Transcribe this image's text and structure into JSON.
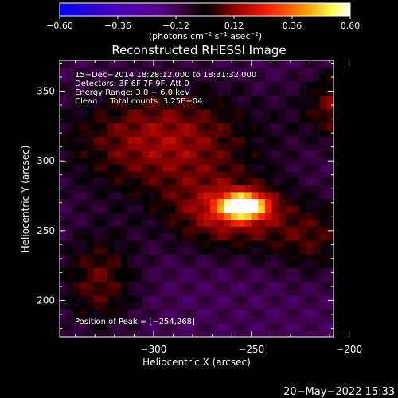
{
  "chart_data": {
    "type": "heatmap",
    "title": "Reconstructed RHESSI Image",
    "xlabel": "Heliocentric X (arcsec)",
    "ylabel": "Heliocentric Y (arcsec)",
    "xlim": [
      -348,
      -208
    ],
    "ylim": [
      174,
      372
    ],
    "xticks": [
      -300,
      -250,
      -200
    ],
    "xtick_labels": [
      "−300",
      "−250",
      "−200"
    ],
    "yticks": [
      200,
      250,
      300,
      350
    ],
    "ytick_labels": [
      "200",
      "250",
      "300",
      "350"
    ],
    "colorbar": {
      "min": -0.6,
      "max": 0.6,
      "ticks": [
        -0.6,
        -0.36,
        -0.12,
        0.12,
        0.36,
        0.6
      ],
      "tick_labels": [
        "−0.60",
        "−0.36",
        "−0.12",
        "0.12",
        "0.36",
        "0.60"
      ],
      "unit_parts": [
        "(photons cm",
        "−2",
        " s",
        "−1",
        " asec",
        "−2",
        ")"
      ]
    },
    "annotations": [
      "15−Dec−2014 18:28:12.000 to 18:31:32.000",
      "Detectors: 3F 6F 7F 9F, Att 0",
      "Energy Range: 3.0 − 6.0 keV",
      "Clean     Total counts: 3.25E+04"
    ],
    "peak_label": "Position of Peak = [−254,268]",
    "peak": [
      -254,
      268
    ],
    "sources": [
      {
        "x": -254,
        "y": 268,
        "peak": 0.6,
        "sx": 8,
        "sy": 6
      },
      {
        "x": -262,
        "y": 262,
        "peak": 0.2,
        "sx": 22,
        "sy": 18
      },
      {
        "x": -295,
        "y": 315,
        "peak": 0.2,
        "sx": 35,
        "sy": 28
      },
      {
        "x": -188,
        "y": 340,
        "peak": 0.3,
        "sx": 20,
        "sy": 17
      },
      {
        "x": -218,
        "y": 245,
        "peak": 0.12,
        "sx": 16,
        "sy": 18
      },
      {
        "x": -328,
        "y": 215,
        "peak": 0.15,
        "sx": 14,
        "sy": 25
      }
    ],
    "background": -0.12
  },
  "timestamp": "20−May−2022 15:33"
}
